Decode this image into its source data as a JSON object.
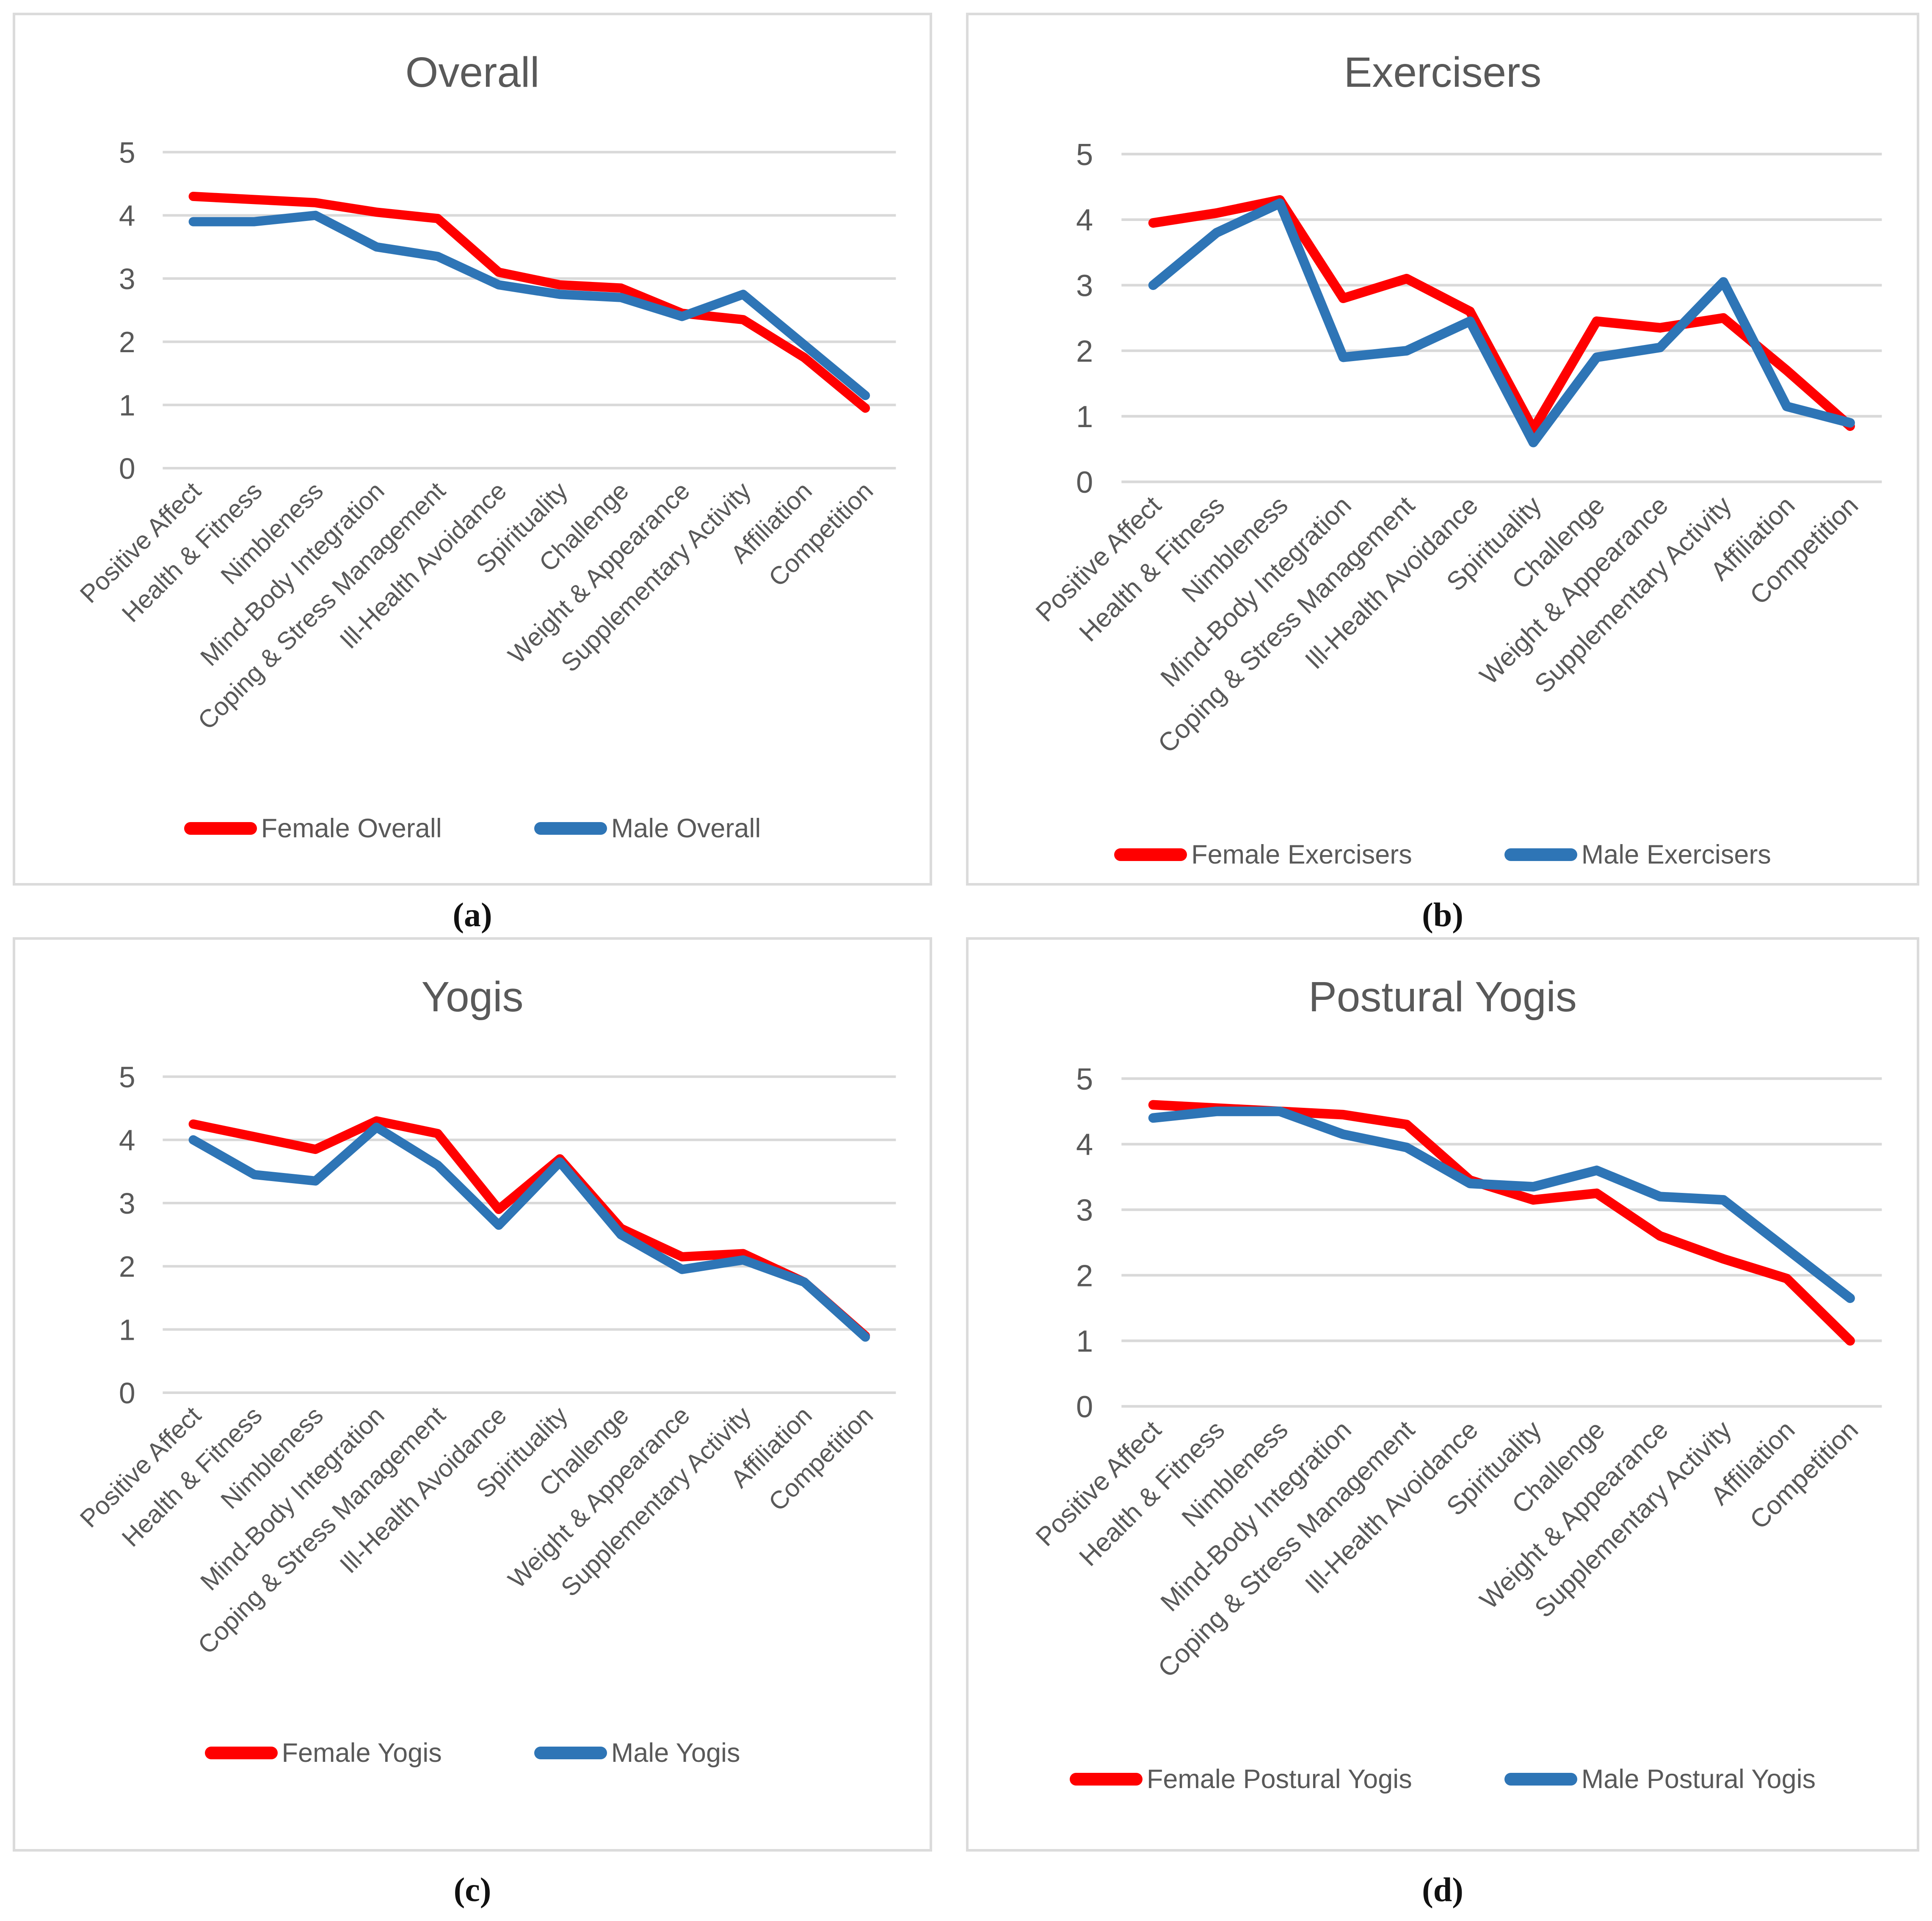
{
  "colors": {
    "female_line": "#FF0000",
    "male_line": "#2E75B6",
    "gridline": "#D9D9D9",
    "axis_text": "#595959",
    "title_text": "#595959",
    "panel_border": "#DBDBDB",
    "caption_text": "#111111"
  },
  "chart_data": [
    {
      "type": "line",
      "panel": "top-left",
      "title": "Overall",
      "caption": "(a)",
      "xlabel": "",
      "ylabel": "",
      "ylim": [
        0,
        5
      ],
      "y_ticks": [
        5,
        4,
        3,
        2,
        1,
        0
      ],
      "grid": true,
      "legend_position": "bottom",
      "categories": [
        "Positive Affect",
        "Health & Fitness",
        "Nimbleness",
        "Mind-Body Integration",
        "Coping & Stress Management",
        "Ill-Health Avoidance",
        "Spirituality",
        "Challenge",
        "Weight & Appearance",
        "Supplementary Activity",
        "Affiliation",
        "Competition"
      ],
      "series": [
        {
          "name": "Female Overall",
          "color": "#FF0000",
          "values": [
            4.3,
            4.25,
            4.2,
            4.05,
            3.95,
            3.1,
            2.9,
            2.85,
            2.45,
            2.35,
            1.75,
            0.95
          ]
        },
        {
          "name": "Male Overall",
          "color": "#2E75B6",
          "values": [
            3.9,
            3.9,
            4.0,
            3.5,
            3.35,
            2.9,
            2.75,
            2.7,
            2.4,
            2.75,
            1.95,
            1.15
          ]
        }
      ]
    },
    {
      "type": "line",
      "panel": "top-right",
      "title": "Exercisers",
      "caption": "(b)",
      "xlabel": "",
      "ylabel": "",
      "ylim": [
        0,
        5
      ],
      "y_ticks": [
        5,
        4,
        3,
        2,
        1,
        0
      ],
      "grid": true,
      "legend_position": "bottom",
      "categories": [
        "Positive Affect",
        "Health & Fitness",
        "Nimbleness",
        "Mind-Body Integration",
        "Coping & Stress Management",
        "Ill-Health Avoidance",
        "Spirituality",
        "Challenge",
        "Weight & Appearance",
        "Supplementary Activity",
        "Affiliation",
        "Competition"
      ],
      "series": [
        {
          "name": "Female Exercisers",
          "color": "#FF0000",
          "values": [
            3.95,
            4.1,
            4.3,
            2.8,
            3.1,
            2.6,
            0.8,
            2.45,
            2.35,
            2.5,
            1.7,
            0.85
          ]
        },
        {
          "name": "Male Exercisers",
          "color": "#2E75B6",
          "values": [
            3.0,
            3.8,
            4.25,
            1.9,
            2.0,
            2.45,
            0.6,
            1.9,
            2.05,
            3.05,
            1.15,
            0.9
          ]
        }
      ]
    },
    {
      "type": "line",
      "panel": "bottom-left",
      "title": "Yogis",
      "caption": "(c)",
      "xlabel": "",
      "ylabel": "",
      "ylim": [
        0,
        5
      ],
      "y_ticks": [
        5,
        4,
        3,
        2,
        1,
        0
      ],
      "grid": true,
      "legend_position": "bottom",
      "categories": [
        "Positive Affect",
        "Health & Fitness",
        "Nimbleness",
        "Mind-Body Integration",
        "Coping & Stress Management",
        "Ill-Health Avoidance",
        "Spirituality",
        "Challenge",
        "Weight & Appearance",
        "Supplementary Activity",
        "Affiliation",
        "Competition"
      ],
      "series": [
        {
          "name": "Female Yogis",
          "color": "#FF0000",
          "values": [
            4.25,
            4.05,
            3.85,
            4.3,
            4.1,
            2.9,
            3.7,
            2.6,
            2.15,
            2.2,
            1.75,
            0.9
          ]
        },
        {
          "name": "Male Yogis",
          "color": "#2E75B6",
          "values": [
            4.0,
            3.45,
            3.35,
            4.2,
            3.6,
            2.65,
            3.65,
            2.5,
            1.95,
            2.1,
            1.75,
            0.88
          ]
        }
      ]
    },
    {
      "type": "line",
      "panel": "bottom-right",
      "title": "Postural Yogis",
      "caption": "(d)",
      "xlabel": "",
      "ylabel": "",
      "ylim": [
        0,
        5
      ],
      "y_ticks": [
        5,
        4,
        3,
        2,
        1,
        0
      ],
      "grid": true,
      "legend_position": "bottom",
      "categories": [
        "Positive Affect",
        "Health & Fitness",
        "Nimbleness",
        "Mind-Body Integration",
        "Coping & Stress Management",
        "Ill-Health Avoidance",
        "Spirituality",
        "Challenge",
        "Weight & Appearance",
        "Supplementary Activity",
        "Affiliation",
        "Competition"
      ],
      "series": [
        {
          "name": "Female Postural Yogis",
          "color": "#FF0000",
          "values": [
            4.6,
            4.55,
            4.5,
            4.45,
            4.3,
            3.45,
            3.15,
            3.25,
            2.6,
            2.25,
            1.95,
            1.0
          ]
        },
        {
          "name": "Male Postural Yogis",
          "color": "#2E75B6",
          "values": [
            4.4,
            4.5,
            4.5,
            4.15,
            3.95,
            3.4,
            3.35,
            3.6,
            3.2,
            3.15,
            2.4,
            1.65
          ]
        }
      ]
    }
  ]
}
